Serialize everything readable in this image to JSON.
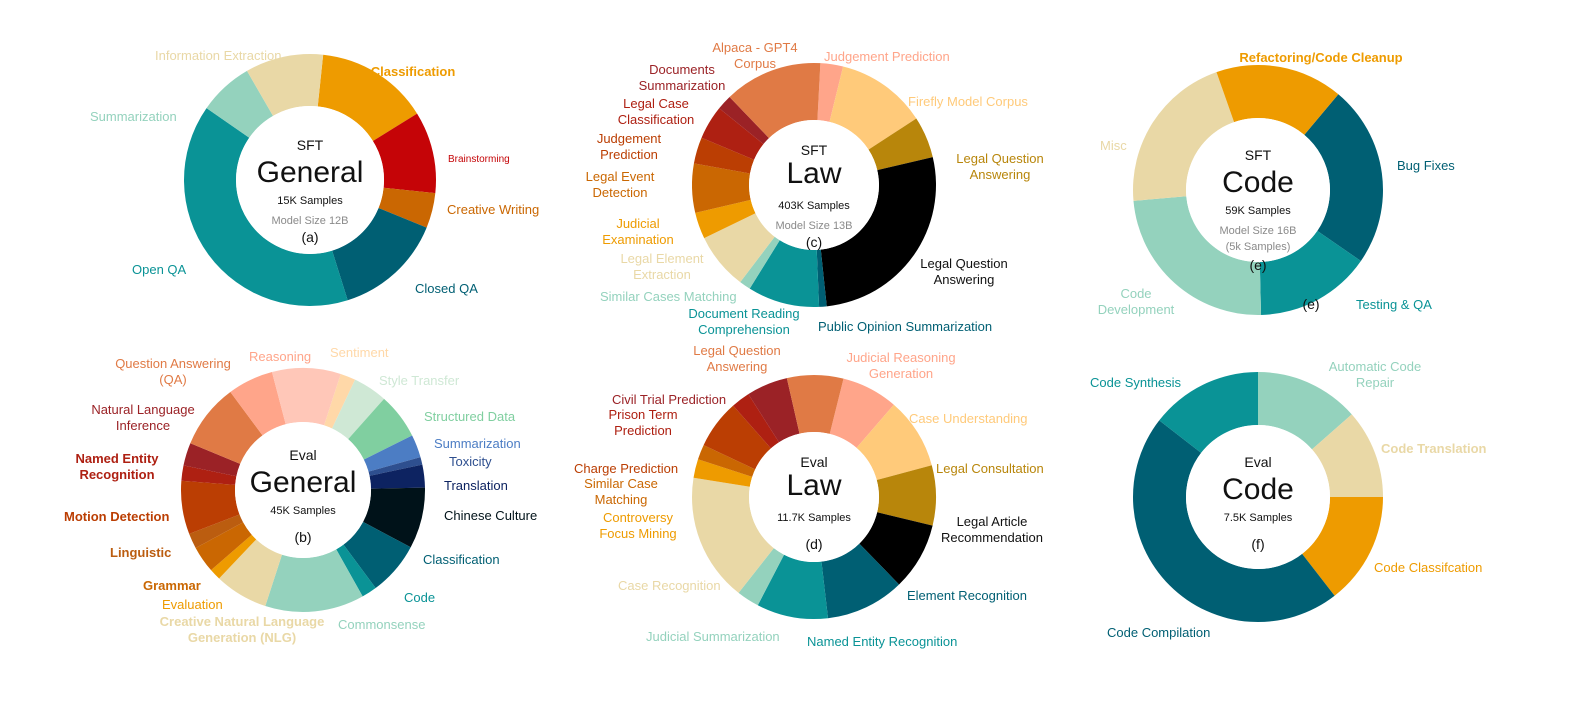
{
  "chart_data": [
    {
      "id": "a",
      "type": "donut",
      "title_small": "SFT",
      "title_big": "General",
      "samples": "15K Samples",
      "model": "Model Size 12B",
      "tag": "(a)",
      "slices": [
        {
          "label": "Classification",
          "value": 14.5,
          "color": "#EE9B00",
          "bold": true
        },
        {
          "label": "Brainstorming",
          "value": 10.5,
          "color": "#C50407",
          "small": true
        },
        {
          "label": "Creative Writing",
          "value": 4.5,
          "color": "#CA6702"
        },
        {
          "label": "Closed QA",
          "value": 14.0,
          "color": "#005F73"
        },
        {
          "label": "Open QA",
          "value": 39.5,
          "color": "#0A9396"
        },
        {
          "label": "Summarization",
          "value": 7.0,
          "color": "#94D2BD"
        },
        {
          "label": "Information Extraction",
          "value": 10.0,
          "color": "#E9D8A6"
        }
      ]
    },
    {
      "id": "b",
      "type": "donut",
      "title_small": "Eval",
      "title_big": "General",
      "samples": "45K Samples",
      "tag": "(b)",
      "slices": [
        {
          "label": "Sentiment",
          "value": 2.0,
          "color": "#FFD8A8"
        },
        {
          "label": "Style Transfer",
          "value": 4.5,
          "color": "#CFE8D5"
        },
        {
          "label": "Structured Data",
          "value": 6.0,
          "color": "#80CFA0"
        },
        {
          "label": "Summarization",
          "value": 3.0,
          "color": "#4C7DC4"
        },
        {
          "label": "Toxicity",
          "value": 1.0,
          "color": "#2E4F8F"
        },
        {
          "label": "Translation",
          "value": 3.0,
          "color": "#0D2361"
        },
        {
          "label": "Chinese Culture",
          "value": 8.0,
          "color": "#001219"
        },
        {
          "label": "Classification",
          "value": 7.0,
          "color": "#005F73"
        },
        {
          "label": "Code",
          "value": 2.0,
          "color": "#0A9396"
        },
        {
          "label": "Commonsense",
          "value": 13.0,
          "color": "#94D2BD"
        },
        {
          "label": "Creative Natural Language\nGeneration (NLG)",
          "value": 7.0,
          "color": "#E9D8A6",
          "bold": true
        },
        {
          "label": "Evaluation",
          "value": 1.5,
          "color": "#EE9B00"
        },
        {
          "label": "Grammar",
          "value": 3.5,
          "color": "#CA6702",
          "bold": true
        },
        {
          "label": "Linguistic",
          "value": 2.0,
          "color": "#BB5D10",
          "bold": true
        },
        {
          "label": "Motion Detection",
          "value": 7.0,
          "color": "#BB3E03",
          "bold": true
        },
        {
          "label": "Named Entity\nRecognition",
          "value": 2.0,
          "color": "#AE2012",
          "bold": true
        },
        {
          "label": "Natural Language\nInference",
          "value": 3.0,
          "color": "#9B2226"
        },
        {
          "label": "Question Answering\n(QA)",
          "value": 8.5,
          "color": "#E07A45"
        },
        {
          "label": "Reasoning",
          "value": 6.0,
          "color": "#FFA58A"
        },
        {
          "label": "",
          "value": 9.0,
          "color": "#FFC7B8"
        }
      ]
    },
    {
      "id": "c",
      "type": "donut",
      "title_small": "SFT",
      "title_big": "Law",
      "samples": "403K Samples",
      "model": "Model Size 13B",
      "tag": "(c)",
      "slices": [
        {
          "label": "Judgement Prediction",
          "value": 3.0,
          "color": "#FFA58A"
        },
        {
          "label": "Firefly Model Corpus",
          "value": 12.0,
          "color": "#FFCA7A"
        },
        {
          "label": "Legal Question\nAnswering",
          "value": 5.5,
          "color": "#B8860B"
        },
        {
          "label": "Legal Question\nAnswering",
          "value": 27.0,
          "color": "#000000"
        },
        {
          "label": "Public Opinion Summarization",
          "value": 1.0,
          "color": "#005F73"
        },
        {
          "label": "Document Reading\nComprehension",
          "value": 9.5,
          "color": "#0A9396"
        },
        {
          "label": "Similar Cases Matching",
          "value": 1.5,
          "color": "#94D2BD"
        },
        {
          "label": "Legal Element\nExtraction",
          "value": 7.5,
          "color": "#E9D8A6"
        },
        {
          "label": "Judicial\nExamination",
          "value": 3.5,
          "color": "#EE9B00"
        },
        {
          "label": "Legal Event\nDetection",
          "value": 6.5,
          "color": "#CA6702"
        },
        {
          "label": "Judgement\nPrediction",
          "value": 3.5,
          "color": "#BB3E03"
        },
        {
          "label": "Legal Case\nClassification",
          "value": 4.5,
          "color": "#AE2012"
        },
        {
          "label": "Documents\nSummarization",
          "value": 2.0,
          "color": "#9B2226"
        },
        {
          "label": "Alpaca - GPT4\nCorpus",
          "value": 13.0,
          "color": "#E07A45"
        }
      ]
    },
    {
      "id": "d",
      "type": "donut",
      "title_small": "Eval",
      "title_big": "Law",
      "samples": "11.7K Samples",
      "tag": "(d)",
      "slices": [
        {
          "label": "Judicial Reasoning\nGeneration",
          "value": 7.5,
          "color": "#FFA58A"
        },
        {
          "label": "Case Understanding",
          "value": 9.5,
          "color": "#FFCA7A"
        },
        {
          "label": "Legal Consultation",
          "value": 8.0,
          "color": "#B8860B"
        },
        {
          "label": "Legal Article\nRecommendation",
          "value": 9.0,
          "color": "#000000"
        },
        {
          "label": "Element Recognition",
          "value": 10.5,
          "color": "#005F73"
        },
        {
          "label": "Named Entity Recognition",
          "value": 9.5,
          "color": "#0A9396"
        },
        {
          "label": "Judicial Summarization",
          "value": 3.0,
          "color": "#94D2BD"
        },
        {
          "label": "Case Recognition",
          "value": 17.0,
          "color": "#E9D8A6"
        },
        {
          "label": "Controversy\nFocus Mining",
          "value": 2.5,
          "color": "#EE9B00"
        },
        {
          "label": "Similar Case\nMatching",
          "value": 2.0,
          "color": "#CA6702"
        },
        {
          "label": "Charge Prediction",
          "value": 6.5,
          "color": "#BB3E03"
        },
        {
          "label": "Prison Term\nPrediction",
          "value": 2.5,
          "color": "#AE2012"
        },
        {
          "label": "Civil Trial Prediction",
          "value": 5.5,
          "color": "#9B2226"
        },
        {
          "label": "Legal Question\nAnswering",
          "value": 7.5,
          "color": "#E07A45"
        }
      ]
    },
    {
      "id": "e",
      "type": "donut",
      "title_small": "SFT",
      "title_big": "Code",
      "samples": "59K Samples",
      "model": "Model Size 16B",
      "model2": "(5k Samples)",
      "tag": "(e)",
      "tag2": "(e)",
      "slices": [
        {
          "label": "Bug Fixes",
          "value": 23.5,
          "color": "#005F73"
        },
        {
          "label": "Testing & QA",
          "value": 15.0,
          "color": "#0A9396"
        },
        {
          "label": "Code\nDevelopment",
          "value": 24.0,
          "color": "#94D2BD"
        },
        {
          "label": "Misc",
          "value": 21.0,
          "color": "#E9D8A6"
        },
        {
          "label": "Refactoring/Code Cleanup",
          "value": 16.5,
          "color": "#EE9B00",
          "bold": true
        }
      ]
    },
    {
      "id": "f",
      "type": "donut",
      "title_small": "Eval",
      "title_big": "Code",
      "samples": "7.5K Samples",
      "tag": "(f)",
      "slices": [
        {
          "label": "Automatic Code\nRepair",
          "value": 13.5,
          "color": "#94D2BD"
        },
        {
          "label": "Code Translation",
          "value": 11.5,
          "color": "#E9D8A6",
          "bold": true
        },
        {
          "label": "Code Classifcation",
          "value": 14.5,
          "color": "#EE9B00"
        },
        {
          "label": "Code Compilation",
          "value": 46.0,
          "color": "#005F73"
        },
        {
          "label": "Code Synthesis",
          "value": 14.5,
          "color": "#0A9396"
        }
      ]
    }
  ]
}
